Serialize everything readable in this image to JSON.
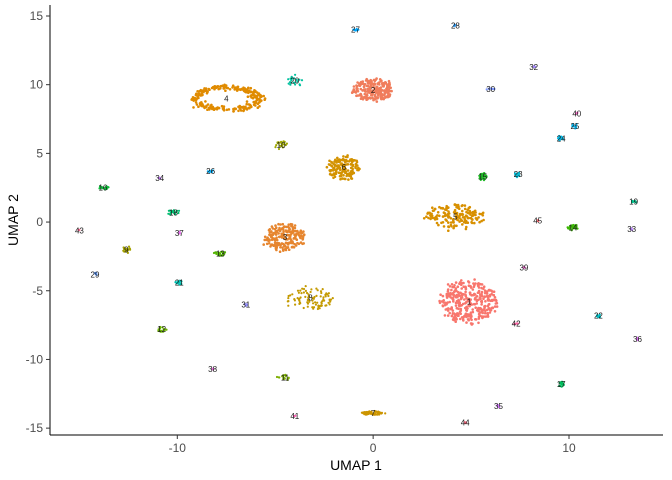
{
  "chart_data": {
    "type": "scatter",
    "title": "",
    "xlabel": "UMAP 1",
    "ylabel": "UMAP 2",
    "xlim": [
      -16.5,
      14.8
    ],
    "ylim": [
      -15.5,
      15.8
    ],
    "x_ticks": [
      -10,
      0,
      10
    ],
    "y_ticks": [
      -15,
      -10,
      -5,
      0,
      5,
      10,
      15
    ],
    "x_tick_labels": [
      "-10",
      "0",
      "10"
    ],
    "y_tick_labels": [
      "-15",
      "-10",
      "-5",
      "0",
      "5",
      "10",
      "15"
    ],
    "grid": false,
    "legend": "none",
    "clusters": [
      {
        "label": "1",
        "x": 4.9,
        "y": -5.8,
        "sx": 1.4,
        "sy": 1.5,
        "color": "#F8766D",
        "n": 340
      },
      {
        "label": "2",
        "x": 0.0,
        "y": 9.6,
        "sx": 1.0,
        "sy": 0.8,
        "color": "#F07D5C",
        "n": 240
      },
      {
        "label": "3",
        "x": -4.5,
        "y": -1.1,
        "sx": 1.0,
        "sy": 1.0,
        "color": "#E6852E",
        "n": 200
      },
      {
        "label": "4",
        "x": -7.5,
        "y": 9.0,
        "sx": 1.6,
        "sy": 0.8,
        "color": "#E08B00",
        "n": 240,
        "shape": "ring"
      },
      {
        "label": "5",
        "x": 4.2,
        "y": 0.4,
        "sx": 1.4,
        "sy": 0.9,
        "color": "#D89000",
        "n": 160
      },
      {
        "label": "6",
        "x": -1.5,
        "y": 4.0,
        "sx": 0.8,
        "sy": 0.9,
        "color": "#D39200",
        "n": 150
      },
      {
        "label": "7",
        "x": 0.0,
        "y": -13.9,
        "sx": 0.6,
        "sy": 0.15,
        "color": "#CC9500",
        "n": 60
      },
      {
        "label": "8",
        "x": -3.2,
        "y": -5.5,
        "sx": 1.2,
        "sy": 0.8,
        "color": "#C49A00",
        "n": 90
      },
      {
        "label": "9",
        "x": -12.6,
        "y": -2.0,
        "sx": 0.2,
        "sy": 0.3,
        "color": "#A5A200",
        "n": 20
      },
      {
        "label": "10",
        "x": -4.7,
        "y": 5.6,
        "sx": 0.3,
        "sy": 0.3,
        "color": "#9EA700",
        "n": 22
      },
      {
        "label": "11",
        "x": -4.5,
        "y": -11.3,
        "sx": 0.4,
        "sy": 0.2,
        "color": "#7CAE00",
        "n": 18
      },
      {
        "label": "12",
        "x": -10.8,
        "y": -7.8,
        "sx": 0.3,
        "sy": 0.2,
        "color": "#6BB100",
        "n": 16
      },
      {
        "label": "13",
        "x": -7.8,
        "y": -2.3,
        "sx": 0.3,
        "sy": 0.2,
        "color": "#53B400",
        "n": 22
      },
      {
        "label": "14",
        "x": 10.2,
        "y": -0.4,
        "sx": 0.3,
        "sy": 0.2,
        "color": "#3DB806",
        "n": 30
      },
      {
        "label": "15",
        "x": 5.6,
        "y": 3.3,
        "sx": 0.2,
        "sy": 0.3,
        "color": "#1FBA26",
        "n": 30
      },
      {
        "label": "16",
        "x": -13.8,
        "y": 2.5,
        "sx": 0.3,
        "sy": 0.15,
        "color": "#0FBC3B",
        "n": 16
      },
      {
        "label": "17",
        "x": 9.6,
        "y": -11.8,
        "sx": 0.15,
        "sy": 0.2,
        "color": "#00BD5C",
        "n": 18
      },
      {
        "label": "18",
        "x": -10.2,
        "y": 0.7,
        "sx": 0.3,
        "sy": 0.2,
        "color": "#00BF72",
        "n": 20
      },
      {
        "label": "19",
        "x": 13.3,
        "y": 1.5,
        "sx": 0.15,
        "sy": 0.1,
        "color": "#00C08B",
        "n": 8
      },
      {
        "label": "20",
        "x": -4.0,
        "y": 10.3,
        "sx": 0.4,
        "sy": 0.4,
        "color": "#00C19F",
        "n": 20
      },
      {
        "label": "21",
        "x": -9.9,
        "y": -4.4,
        "sx": 0.2,
        "sy": 0.15,
        "color": "#00C0B2",
        "n": 12
      },
      {
        "label": "22",
        "x": 11.5,
        "y": -6.8,
        "sx": 0.15,
        "sy": 0.15,
        "color": "#00BFC4",
        "n": 10
      },
      {
        "label": "23",
        "x": 7.4,
        "y": 3.5,
        "sx": 0.2,
        "sy": 0.2,
        "color": "#00BCD6",
        "n": 12
      },
      {
        "label": "24",
        "x": 9.6,
        "y": 6.1,
        "sx": 0.2,
        "sy": 0.2,
        "color": "#00B8E5",
        "n": 12
      },
      {
        "label": "25",
        "x": 10.3,
        "y": 7.0,
        "sx": 0.2,
        "sy": 0.2,
        "color": "#00B4F0",
        "n": 10
      },
      {
        "label": "26",
        "x": -8.3,
        "y": 3.7,
        "sx": 0.15,
        "sy": 0.1,
        "color": "#00AEFA",
        "n": 8
      },
      {
        "label": "27",
        "x": -0.9,
        "y": 14.0,
        "sx": 0.15,
        "sy": 0.08,
        "color": "#00A9FF",
        "n": 8
      },
      {
        "label": "28",
        "x": 4.2,
        "y": 14.3,
        "sx": 0.08,
        "sy": 0.08,
        "color": "#35A2FF",
        "n": 6
      },
      {
        "label": "29",
        "x": -14.2,
        "y": -3.8,
        "sx": 0.08,
        "sy": 0.15,
        "color": "#619CFF",
        "n": 6
      },
      {
        "label": "30",
        "x": 6.0,
        "y": 9.7,
        "sx": 0.25,
        "sy": 0.1,
        "color": "#7C96FF",
        "n": 8
      },
      {
        "label": "31",
        "x": -6.5,
        "y": -6.0,
        "sx": 0.08,
        "sy": 0.15,
        "color": "#9590FF",
        "n": 5
      },
      {
        "label": "32",
        "x": 8.2,
        "y": 11.3,
        "sx": 0.08,
        "sy": 0.1,
        "color": "#A58AFF",
        "n": 5
      },
      {
        "label": "33",
        "x": 13.2,
        "y": -0.5,
        "sx": 0.05,
        "sy": 0.1,
        "color": "#B983FF",
        "n": 4
      },
      {
        "label": "34",
        "x": -10.9,
        "y": 3.2,
        "sx": 0.05,
        "sy": 0.08,
        "color": "#C77CFF",
        "n": 4
      },
      {
        "label": "35",
        "x": 6.4,
        "y": -13.4,
        "sx": 0.1,
        "sy": 0.08,
        "color": "#D376FF",
        "n": 5
      },
      {
        "label": "36",
        "x": 13.5,
        "y": -8.5,
        "sx": 0.05,
        "sy": 0.1,
        "color": "#DD70F6",
        "n": 4
      },
      {
        "label": "37",
        "x": -9.9,
        "y": -0.8,
        "sx": 0.05,
        "sy": 0.08,
        "color": "#E56BEC",
        "n": 4
      },
      {
        "label": "38",
        "x": -8.2,
        "y": -10.7,
        "sx": 0.05,
        "sy": 0.05,
        "color": "#EC69E0",
        "n": 3
      },
      {
        "label": "39",
        "x": 7.7,
        "y": -3.3,
        "sx": 0.05,
        "sy": 0.05,
        "color": "#F166D2",
        "n": 3
      },
      {
        "label": "40",
        "x": 10.4,
        "y": 7.9,
        "sx": 0.05,
        "sy": 0.08,
        "color": "#F564C4",
        "n": 3
      },
      {
        "label": "41",
        "x": -4.0,
        "y": -14.1,
        "sx": 0.05,
        "sy": 0.05,
        "color": "#F863B3",
        "n": 3
      },
      {
        "label": "42",
        "x": 7.3,
        "y": -7.4,
        "sx": 0.15,
        "sy": 0.05,
        "color": "#FA63A2",
        "n": 4
      },
      {
        "label": "43",
        "x": -15.0,
        "y": -0.6,
        "sx": 0.05,
        "sy": 0.05,
        "color": "#FB6590",
        "n": 3
      },
      {
        "label": "44",
        "x": 4.7,
        "y": -14.6,
        "sx": 0.05,
        "sy": 0.05,
        "color": "#FA687E",
        "n": 3
      },
      {
        "label": "45",
        "x": 8.4,
        "y": 0.1,
        "sx": 0.05,
        "sy": 0.05,
        "color": "#F96C73",
        "n": 3
      }
    ]
  }
}
